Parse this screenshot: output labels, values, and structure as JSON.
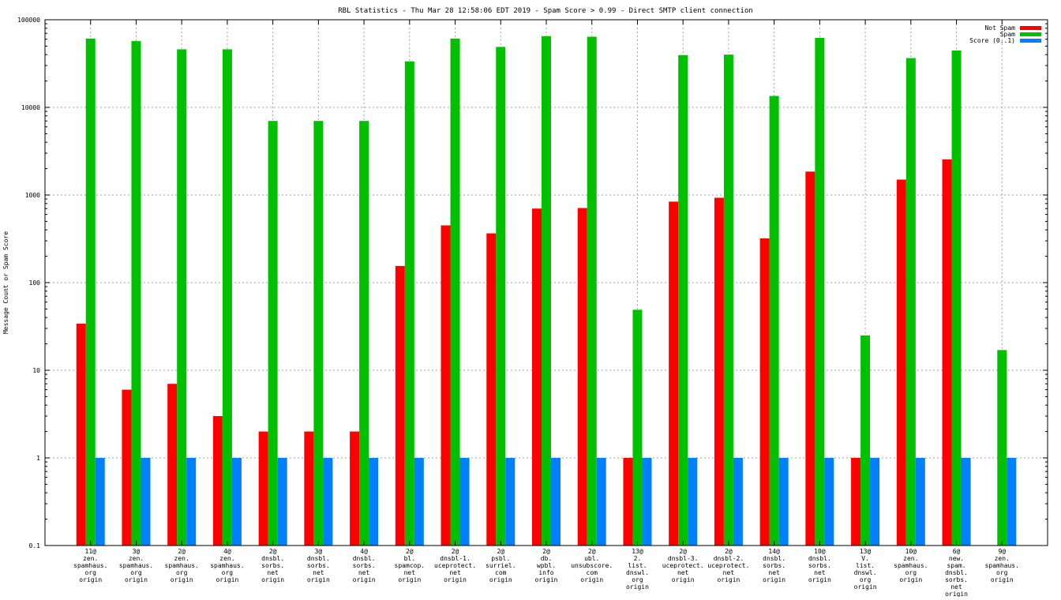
{
  "chart_data": {
    "type": "bar",
    "title": "RBL Statistics - Thu Mar 28 12:58:06 EDT 2019 - Spam Score > 0.99 - Direct SMTP client connection",
    "xlabel": "",
    "ylabel": "Message Count or Spam Score",
    "yscale": "log",
    "ylim": [
      0.1,
      100000
    ],
    "yticks": [
      "0.1",
      "1",
      "10",
      "100",
      "1000",
      "10000",
      "100000"
    ],
    "grid": true,
    "legend_position": "top-right",
    "categories": [
      [
        "11@",
        "zen.",
        "spamhaus.",
        "org",
        "origin"
      ],
      [
        "3@",
        "zen.",
        "spamhaus.",
        "org",
        "origin"
      ],
      [
        "2@",
        "zen.",
        "spamhaus.",
        "org",
        "origin"
      ],
      [
        "4@",
        "zen.",
        "spamhaus.",
        "org",
        "origin"
      ],
      [
        "2@",
        "dnsbl.",
        "sorbs.",
        "net",
        "origin"
      ],
      [
        "3@",
        "dnsbl.",
        "sorbs.",
        "net",
        "origin"
      ],
      [
        "4@",
        "dnsbl.",
        "sorbs.",
        "net",
        "origin"
      ],
      [
        "2@",
        "bl.",
        "spamcop.",
        "net",
        "origin"
      ],
      [
        "2@",
        "dnsbl-1.",
        "uceprotect.",
        "net",
        "origin"
      ],
      [
        "2@",
        "psbl.",
        "surriel.",
        "com",
        "origin"
      ],
      [
        "2@",
        "db.",
        "wpbl.",
        "info",
        "origin"
      ],
      [
        "2@",
        "ubl.",
        "unsubscore.",
        "com",
        "origin"
      ],
      [
        "13@",
        "2.",
        "list.",
        "dnswl.",
        "org",
        "origin"
      ],
      [
        "2@",
        "dnsbl-3.",
        "uceprotect.",
        "net",
        "origin"
      ],
      [
        "2@",
        "dnsbl-2.",
        "uceprotect.",
        "net",
        "origin"
      ],
      [
        "14@",
        "dnsbl.",
        "sorbs.",
        "net",
        "origin"
      ],
      [
        "10@",
        "dnsbl.",
        "sorbs.",
        "net",
        "origin"
      ],
      [
        "13@",
        "V.",
        "list.",
        "dnswl.",
        "org",
        "origin"
      ],
      [
        "10@",
        "zen.",
        "spamhaus.",
        "org",
        "origin"
      ],
      [
        "6@",
        "new.",
        "spam.",
        "dnsbl.",
        "sorbs.",
        "net",
        "origin"
      ],
      [
        "9@",
        "zen.",
        "spamhaus.",
        "org",
        "origin"
      ]
    ],
    "series": [
      {
        "name": "Not Spam",
        "color": "#ff0000",
        "values": [
          34,
          6,
          7,
          3,
          2,
          2,
          2,
          155,
          450,
          365,
          700,
          710,
          1,
          840,
          930,
          320,
          1850,
          1,
          1500,
          2550,
          null
        ]
      },
      {
        "name": "Spam",
        "color": "#00c000",
        "values": [
          61000,
          57000,
          46000,
          46000,
          7000,
          7000,
          7000,
          33500,
          61000,
          49000,
          65000,
          64000,
          49,
          39500,
          40000,
          13500,
          62000,
          25,
          36500,
          44500,
          17
        ]
      },
      {
        "name": "Score (0..1)",
        "color": "#0080ff",
        "values": [
          1,
          1,
          1,
          1,
          1,
          1,
          1,
          1,
          1,
          1,
          1,
          1,
          1,
          1,
          1,
          1,
          1,
          1,
          1,
          1,
          1
        ]
      }
    ]
  }
}
